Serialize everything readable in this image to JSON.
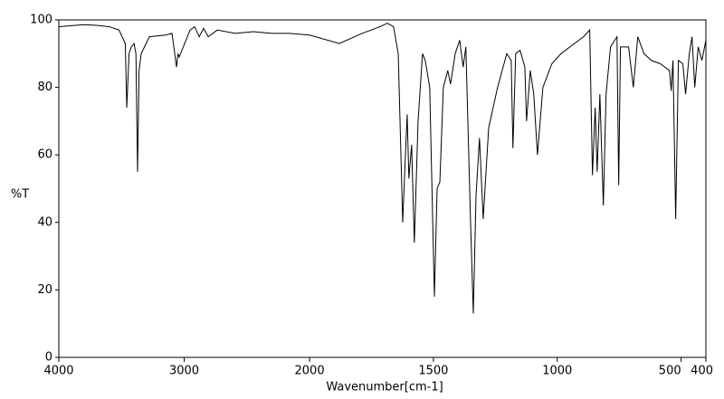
{
  "chart_data": {
    "type": "line",
    "xlabel": "Wavenumber[cm-1]",
    "ylabel": "%T",
    "xlim": [
      4000,
      400
    ],
    "ylim": [
      0,
      100
    ],
    "xticks": [
      4000,
      3000,
      2000,
      1500,
      1000,
      500,
      400
    ],
    "yticks": [
      0,
      20,
      40,
      60,
      80,
      100
    ],
    "series": [
      {
        "color": "#000000",
        "x": [
          4000,
          3900,
          3800,
          3700,
          3600,
          3520,
          3470,
          3458,
          3440,
          3422,
          3400,
          3385,
          3372,
          3360,
          3343,
          3278,
          3150,
          3097,
          3061,
          3050,
          3040,
          2953,
          2917,
          2880,
          2845,
          2808,
          2736,
          2592,
          2448,
          2300,
          2159,
          2000,
          1880,
          1788,
          1715,
          1686,
          1661,
          1642,
          1624,
          1613,
          1606,
          1599,
          1588,
          1577,
          1562,
          1544,
          1533,
          1515,
          1496,
          1485,
          1474,
          1460,
          1442,
          1431,
          1412,
          1394,
          1380,
          1369,
          1350,
          1339,
          1328,
          1314,
          1299,
          1277,
          1241,
          1204,
          1186,
          1179,
          1168,
          1150,
          1131,
          1124,
          1109,
          1095,
          1080,
          1058,
          1022,
          985,
          949,
          894,
          869,
          858,
          847,
          839,
          828,
          814,
          803,
          785,
          759,
          752,
          745,
          712,
          693,
          675,
          650,
          620,
          584,
          547,
          540,
          533,
          522,
          511,
          493,
          482,
          467,
          456,
          445,
          431,
          416,
          400
        ],
        "values": [
          98,
          98.3,
          98.6,
          98.4,
          98,
          97,
          93,
          74,
          90,
          92,
          93,
          90,
          55,
          85,
          90,
          95,
          95.5,
          96,
          86,
          90,
          89,
          97,
          98,
          95,
          97.5,
          95,
          97,
          96,
          96.5,
          96,
          96,
          95.5,
          93,
          96,
          98,
          99,
          98,
          90,
          40,
          60,
          72,
          53,
          63,
          34,
          70,
          90,
          88,
          80,
          18,
          50,
          52,
          80,
          85,
          81,
          90,
          94,
          86,
          92,
          40,
          13,
          48,
          65,
          41,
          68,
          80,
          90,
          88,
          62,
          90,
          91,
          86,
          70,
          85,
          78,
          60,
          80,
          87,
          90,
          92,
          95,
          97,
          54,
          74,
          55,
          78,
          45,
          78,
          92,
          95,
          51,
          92,
          92,
          80,
          95,
          90,
          88,
          87,
          85,
          79,
          88,
          41,
          88,
          87,
          78,
          90,
          95,
          80,
          92,
          88,
          94
        ]
      }
    ]
  }
}
